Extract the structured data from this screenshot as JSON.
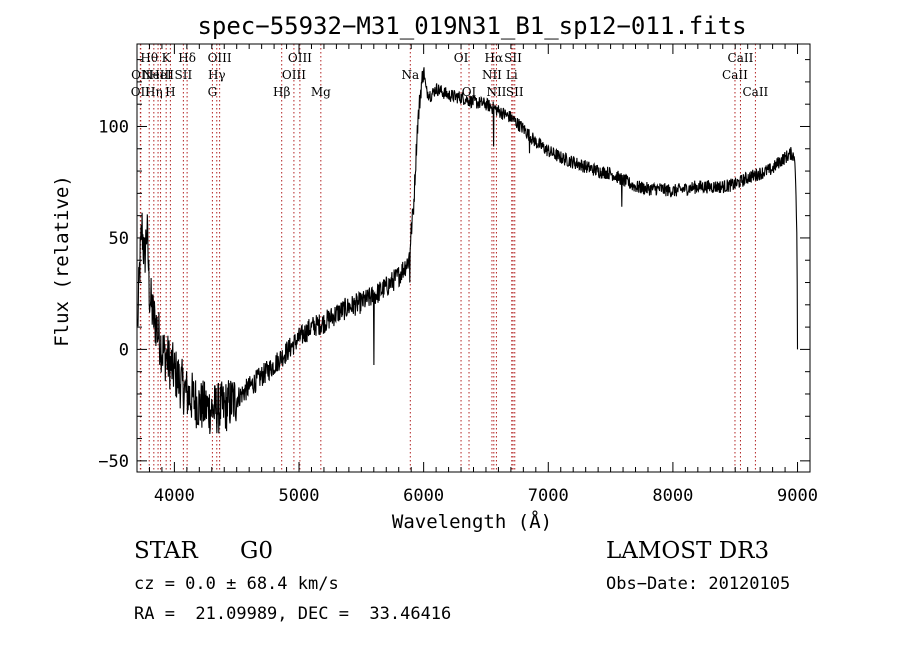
{
  "chart_data": {
    "type": "line",
    "title": "spec−55932−M31_019N31_B1_sp12−011.fits",
    "xlabel": "Wavelength (Å)",
    "ylabel": "Flux (relative)",
    "xlim": [
      3700,
      9100
    ],
    "ylim": [
      -55,
      137
    ],
    "xticks": [
      4000,
      5000,
      6000,
      7000,
      8000,
      9000
    ],
    "yticks": [
      -50,
      0,
      50,
      100
    ],
    "grid": false,
    "line_color": "#000000",
    "marker_color": "#b22222",
    "spectrum_knots": [
      [
        3705,
        10
      ],
      [
        3720,
        35
      ],
      [
        3740,
        55
      ],
      [
        3760,
        40
      ],
      [
        3780,
        55
      ],
      [
        3800,
        25
      ],
      [
        3830,
        15
      ],
      [
        3860,
        10
      ],
      [
        3900,
        0
      ],
      [
        3950,
        -5
      ],
      [
        4000,
        -10
      ],
      [
        4050,
        -15
      ],
      [
        4100,
        -20
      ],
      [
        4150,
        -22
      ],
      [
        4200,
        -25
      ],
      [
        4300,
        -27
      ],
      [
        4400,
        -26
      ],
      [
        4500,
        -22
      ],
      [
        4600,
        -17
      ],
      [
        4700,
        -12
      ],
      [
        4800,
        -7
      ],
      [
        4900,
        -1
      ],
      [
        5000,
        5
      ],
      [
        5100,
        10
      ],
      [
        5200,
        12
      ],
      [
        5300,
        16
      ],
      [
        5400,
        19
      ],
      [
        5500,
        21
      ],
      [
        5600,
        24
      ],
      [
        5700,
        28
      ],
      [
        5800,
        33
      ],
      [
        5880,
        40
      ],
      [
        5920,
        65
      ],
      [
        5950,
        100
      ],
      [
        5980,
        118
      ],
      [
        6000,
        126
      ],
      [
        6020,
        116
      ],
      [
        6060,
        114
      ],
      [
        6100,
        117
      ],
      [
        6200,
        114
      ],
      [
        6300,
        113
      ],
      [
        6400,
        111
      ],
      [
        6500,
        110
      ],
      [
        6600,
        107
      ],
      [
        6700,
        104
      ],
      [
        6800,
        99
      ],
      [
        6900,
        93
      ],
      [
        7000,
        89
      ],
      [
        7100,
        86
      ],
      [
        7200,
        84
      ],
      [
        7300,
        82
      ],
      [
        7400,
        80
      ],
      [
        7500,
        79
      ],
      [
        7600,
        76
      ],
      [
        7700,
        73
      ],
      [
        7800,
        72
      ],
      [
        7900,
        72
      ],
      [
        8000,
        71
      ],
      [
        8100,
        72
      ],
      [
        8200,
        73
      ],
      [
        8300,
        73
      ],
      [
        8400,
        73
      ],
      [
        8500,
        74
      ],
      [
        8600,
        77
      ],
      [
        8700,
        79
      ],
      [
        8800,
        81
      ],
      [
        8850,
        84
      ],
      [
        8900,
        86
      ],
      [
        8950,
        88
      ],
      [
        8980,
        86
      ],
      [
        8995,
        50
      ],
      [
        9000,
        0
      ]
    ],
    "spike_features": [
      {
        "x": 5600,
        "y": -7
      },
      {
        "x": 5890,
        "y": 30
      },
      {
        "x": 6560,
        "y": 91
      },
      {
        "x": 7590,
        "y": 64
      },
      {
        "x": 6850,
        "y": 88
      }
    ],
    "noise_by_range": [
      {
        "from": 3700,
        "to": 4500,
        "amplitude": 12
      },
      {
        "from": 4500,
        "to": 6000,
        "amplitude": 5
      },
      {
        "from": 6000,
        "to": 9000,
        "amplitude": 3
      }
    ],
    "line_markers": [
      {
        "x": 3727,
        "label": "OII",
        "row": 2
      },
      {
        "x": 3730,
        "label": "OII",
        "row": 1
      },
      {
        "x": 3798,
        "label": "Hθ",
        "row": 0
      },
      {
        "x": 3835,
        "label": "Hη",
        "row": 2
      },
      {
        "x": 3869,
        "label": "NeIII",
        "row": 1
      },
      {
        "x": 3889,
        "label": "HeI",
        "row": 1
      },
      {
        "x": 3934,
        "label": "K",
        "row": 0
      },
      {
        "x": 3968,
        "label": "H",
        "row": 2
      },
      {
        "x": 4072,
        "label": "SII",
        "row": 1
      },
      {
        "x": 4102,
        "label": "Hδ",
        "row": 0
      },
      {
        "x": 4305,
        "label": "G",
        "row": 2
      },
      {
        "x": 4340,
        "label": "Hγ",
        "row": 1
      },
      {
        "x": 4363,
        "label": "OIII",
        "row": 0
      },
      {
        "x": 4861,
        "label": "Hβ",
        "row": 2
      },
      {
        "x": 4959,
        "label": "OIII",
        "row": 1
      },
      {
        "x": 5007,
        "label": "OIII",
        "row": 0
      },
      {
        "x": 5175,
        "label": "Mg",
        "row": 2
      },
      {
        "x": 5893,
        "label": "Na",
        "row": 1
      },
      {
        "x": 6300,
        "label": "OI",
        "row": 0
      },
      {
        "x": 6364,
        "label": "OI",
        "row": 2
      },
      {
        "x": 6548,
        "label": "NII",
        "row": 1
      },
      {
        "x": 6563,
        "label": "Hα",
        "row": 0
      },
      {
        "x": 6584,
        "label": "NII",
        "row": 2
      },
      {
        "x": 6707,
        "label": "Li",
        "row": 1
      },
      {
        "x": 6717,
        "label": "SII",
        "row": 0
      },
      {
        "x": 6731,
        "label": "SII",
        "row": 2
      },
      {
        "x": 8498,
        "label": "CaII",
        "row": 1
      },
      {
        "x": 8542,
        "label": "CaII",
        "row": 0
      },
      {
        "x": 8662,
        "label": "CaII",
        "row": 2
      }
    ]
  },
  "info": {
    "class_label": "STAR",
    "subclass_label": "G0",
    "survey": "LAMOST DR3",
    "redshift": "cz = 0.0 ± 68.4 km/s",
    "obs_date": "Obs−Date: 20120105",
    "coords": "RA =  21.09989, DEC =  33.46416"
  }
}
